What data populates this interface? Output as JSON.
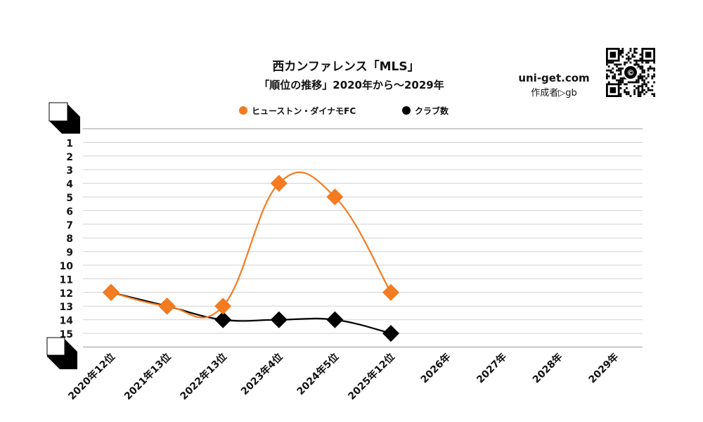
{
  "header": {
    "title": "西カンファレンス「MLS」",
    "subtitle": "「順位の推移」2020年から～2029年",
    "site": "uni-get.com",
    "author": "作成者▷gb"
  },
  "legend": {
    "items": [
      {
        "label": "ヒューストン・ダイナモFC",
        "color": "#f47b20"
      },
      {
        "label": "クラブ数",
        "color": "#000000"
      }
    ]
  },
  "chart_data": {
    "type": "line",
    "title": "西カンファレンス「MLS」",
    "subtitle": "「順位の推移」2020年から～2029年",
    "categories": [
      "2020年12位",
      "2021年13位",
      "2022年13位",
      "2023年4位",
      "2024年5位",
      "2025年12位",
      "2026年",
      "2027年",
      "2028年",
      "2029年"
    ],
    "y_ticks": [
      "1",
      "2",
      "3",
      "4",
      "5",
      "6",
      "7",
      "8",
      "9",
      "10",
      "11",
      "12",
      "13",
      "14",
      "15"
    ],
    "ylim": [
      0,
      16
    ],
    "y_inverted": true,
    "grid": true,
    "legend_position": "top",
    "series": [
      {
        "name": "ヒューストン・ダイナモFC",
        "color": "#f47b20",
        "values": [
          12,
          13,
          13,
          4,
          5,
          12,
          null,
          null,
          null,
          null
        ]
      },
      {
        "name": "クラブ数",
        "color": "#000000",
        "values": [
          12,
          13,
          14,
          14,
          14,
          15,
          null,
          null,
          null,
          null
        ]
      }
    ]
  }
}
